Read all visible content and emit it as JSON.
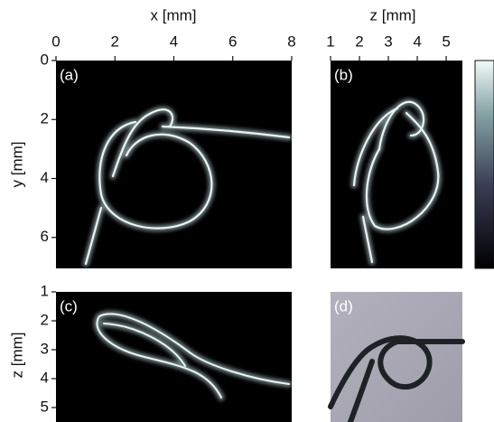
{
  "panels": [
    {
      "label": "(a)",
      "xlabel": "x [mm]",
      "xlim": [
        0,
        8
      ],
      "xticks": [
        0,
        2,
        4,
        6,
        8
      ],
      "ylabel": "y [mm]",
      "ylim": [
        0,
        7.05
      ],
      "yticks": [
        0,
        2,
        4,
        6
      ]
    },
    {
      "label": "(b)",
      "xlabel": "z [mm]",
      "xlim": [
        1,
        5.56
      ],
      "xticks": [
        1,
        2,
        3,
        4,
        5
      ]
    },
    {
      "label": "(c)",
      "ylabel": "z [mm]",
      "ylim": [
        1,
        5.5
      ],
      "yticks": [
        1,
        2,
        3,
        4,
        5
      ]
    },
    {
      "label": "(d)"
    }
  ]
}
